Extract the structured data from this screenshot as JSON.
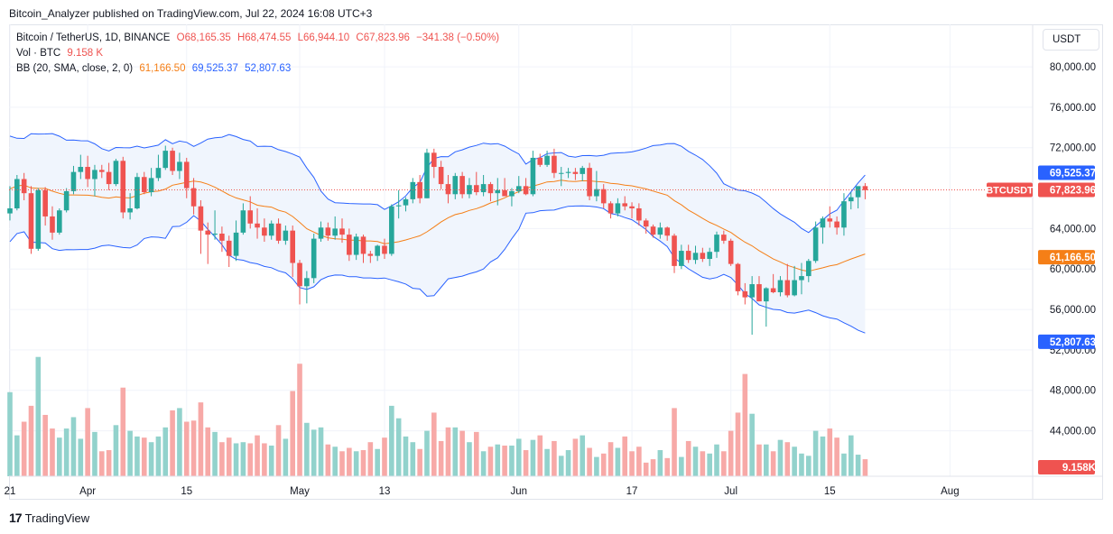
{
  "header": {
    "published_line": "Bitcoin_Analyzer published on TradingView.com, Jul 22, 2024 16:08 UTC+3"
  },
  "legend": {
    "symbol": "Bitcoin / TetherUS, 1D, BINANCE",
    "open": "O68,165.35",
    "high": "H68,474.55",
    "low": "L66,944.10",
    "close": "C67,823.96",
    "change": "−341.38 (−0.50%)",
    "vol_label": "Vol · BTC",
    "vol_value": "9.158 K",
    "bb_label": "BB (20, SMA, close, 2, 0)",
    "bb_basis": "61,166.50",
    "bb_upper": "69,525.37",
    "bb_lower": "52,807.63"
  },
  "currency_button": "USDT",
  "footer": {
    "logo": "17",
    "brand": "TradingView"
  },
  "colors": {
    "up": "#26a69a",
    "down": "#ef5350",
    "up_volume": "#92d2cc",
    "down_volume": "#f7a9a7",
    "bb_basis": "#f57f17",
    "bb_band": "#2962ff",
    "bb_fill": "#f0f5fd",
    "price_line": "#ef5350"
  },
  "chart_data": {
    "type": "candlestick",
    "symbol_tag": "BTCUSDT",
    "x_ticks": [
      {
        "label": "21",
        "day": 0
      },
      {
        "label": "Apr",
        "day": 11
      },
      {
        "label": "15",
        "day": 25
      },
      {
        "label": "May",
        "day": 41
      },
      {
        "label": "13",
        "day": 53
      },
      {
        "label": "Jun",
        "day": 72
      },
      {
        "label": "17",
        "day": 88
      },
      {
        "label": "Jul",
        "day": 102
      },
      {
        "label": "15",
        "day": 116
      },
      {
        "label": "Aug",
        "day": 133
      }
    ],
    "y_ticks": [
      "80,000.00",
      "76,000.00",
      "72,000.00",
      "64,000.00",
      "60,000.00",
      "56,000.00",
      "52,000.00",
      "48,000.00",
      "44,000.00"
    ],
    "y_tick_values": [
      80000,
      76000,
      72000,
      64000,
      60000,
      56000,
      52000,
      48000,
      44000
    ],
    "price_ylim": [
      39500,
      84200
    ],
    "axis_labels": [
      {
        "text": "69,525.37",
        "value": 69525.37,
        "kind": "upper"
      },
      {
        "text": "67,823.96",
        "value": 67823.96,
        "kind": "last",
        "tag": "BTCUSDT"
      },
      {
        "text": "61,166.50",
        "value": 61166.5,
        "kind": "basis"
      },
      {
        "text": "52,807.63",
        "value": 52807.63,
        "kind": "lower"
      },
      {
        "text": "9.158K",
        "kind": "volume"
      }
    ],
    "last_price": 67823.96,
    "volume_max": 10,
    "candles_ohlc": [
      [
        65500,
        68200,
        64800,
        66000
      ],
      [
        66000,
        69300,
        65800,
        68900
      ],
      [
        68900,
        69500,
        66800,
        67500
      ],
      [
        67500,
        68200,
        61500,
        62000
      ],
      [
        62000,
        68000,
        61800,
        67800
      ],
      [
        67800,
        68100,
        64300,
        65200
      ],
      [
        65200,
        66200,
        62900,
        63600
      ],
      [
        63600,
        66000,
        63400,
        65800
      ],
      [
        65800,
        68000,
        65600,
        67700
      ],
      [
        67700,
        70200,
        67400,
        69600
      ],
      [
        69600,
        71300,
        68900,
        70100
      ],
      [
        70100,
        71200,
        68100,
        68900
      ],
      [
        68900,
        70300,
        67200,
        69800
      ],
      [
        69800,
        70300,
        69000,
        69600
      ],
      [
        69600,
        70500,
        67800,
        68400
      ],
      [
        68400,
        70900,
        68200,
        70700
      ],
      [
        70700,
        71100,
        65000,
        65600
      ],
      [
        65600,
        67500,
        64900,
        66000
      ],
      [
        66000,
        69500,
        65900,
        69100
      ],
      [
        69100,
        69600,
        67400,
        67600
      ],
      [
        67600,
        70000,
        67200,
        69000
      ],
      [
        69000,
        71300,
        68700,
        70000
      ],
      [
        70000,
        72200,
        69800,
        71700
      ],
      [
        71700,
        72000,
        69300,
        69700
      ],
      [
        69700,
        71500,
        68900,
        70600
      ],
      [
        70600,
        71000,
        67000,
        68000
      ],
      [
        68000,
        69000,
        65400,
        66200
      ],
      [
        66200,
        66800,
        61500,
        63800
      ],
      [
        63800,
        64600,
        60500,
        63400
      ],
      [
        63400,
        65800,
        62900,
        63500
      ],
      [
        63500,
        64200,
        61700,
        62800
      ],
      [
        62800,
        63300,
        60200,
        61300
      ],
      [
        61300,
        64800,
        60800,
        63600
      ],
      [
        63600,
        66500,
        63400,
        65800
      ],
      [
        65800,
        67200,
        64000,
        64500
      ],
      [
        64500,
        66000,
        63000,
        64100
      ],
      [
        64100,
        65000,
        62700,
        63300
      ],
      [
        63300,
        64800,
        62900,
        64500
      ],
      [
        64500,
        65000,
        62500,
        62800
      ],
      [
        62800,
        64300,
        62400,
        63800
      ],
      [
        63800,
        64300,
        59200,
        60600
      ],
      [
        60600,
        60900,
        56500,
        58300
      ],
      [
        58300,
        59800,
        56600,
        59100
      ],
      [
        59100,
        63500,
        58600,
        63000
      ],
      [
        63000,
        64700,
        62700,
        64100
      ],
      [
        64100,
        64600,
        62800,
        63300
      ],
      [
        63300,
        65200,
        62900,
        64000
      ],
      [
        64000,
        65000,
        62600,
        63400
      ],
      [
        63400,
        64000,
        60800,
        61400
      ],
      [
        61400,
        63500,
        60900,
        63200
      ],
      [
        63200,
        63400,
        60600,
        61500
      ],
      [
        61500,
        61800,
        60600,
        61300
      ],
      [
        61300,
        62400,
        60800,
        62300
      ],
      [
        62300,
        63000,
        61000,
        61500
      ],
      [
        61500,
        66400,
        61300,
        66200
      ],
      [
        66200,
        67800,
        65000,
        66300
      ],
      [
        66300,
        67100,
        65700,
        66900
      ],
      [
        66900,
        69000,
        66500,
        68600
      ],
      [
        68600,
        69300,
        66500,
        67000
      ],
      [
        67000,
        71900,
        67000,
        71500
      ],
      [
        71500,
        71900,
        69000,
        70100
      ],
      [
        70100,
        70700,
        67900,
        68400
      ],
      [
        68400,
        69300,
        66500,
        67400
      ],
      [
        67400,
        69500,
        66900,
        69200
      ],
      [
        69200,
        69600,
        67000,
        67400
      ],
      [
        67400,
        69000,
        67000,
        68300
      ],
      [
        68300,
        69600,
        67300,
        67600
      ],
      [
        67600,
        69300,
        67200,
        68400
      ],
      [
        68400,
        68600,
        66700,
        67500
      ],
      [
        67500,
        69000,
        66300,
        67800
      ],
      [
        67800,
        69000,
        67200,
        67200
      ],
      [
        67200,
        68000,
        66200,
        67700
      ],
      [
        67700,
        69200,
        67500,
        68200
      ],
      [
        68200,
        69000,
        67300,
        67400
      ],
      [
        67400,
        71700,
        67200,
        71000
      ],
      [
        71000,
        71400,
        70100,
        70300
      ],
      [
        70300,
        71700,
        70100,
        71200
      ],
      [
        71200,
        71900,
        69000,
        69500
      ],
      [
        69500,
        70100,
        68200,
        69500
      ],
      [
        69500,
        70000,
        69000,
        69600
      ],
      [
        69600,
        70000,
        68800,
        69400
      ],
      [
        69400,
        70200,
        68700,
        70000
      ],
      [
        70000,
        70500,
        66800,
        67200
      ],
      [
        67200,
        69700,
        66700,
        67900
      ],
      [
        67900,
        68400,
        66000,
        66500
      ],
      [
        66500,
        66700,
        65000,
        65500
      ],
      [
        65500,
        67000,
        65200,
        66500
      ],
      [
        66500,
        67200,
        65800,
        66200
      ],
      [
        66200,
        66600,
        65000,
        66000
      ],
      [
        66000,
        66500,
        64300,
        64800
      ],
      [
        64800,
        65000,
        63500,
        64200
      ],
      [
        64200,
        64400,
        63100,
        63400
      ],
      [
        63400,
        64600,
        63000,
        64100
      ],
      [
        64100,
        64200,
        62800,
        63300
      ],
      [
        63300,
        63500,
        59600,
        60300
      ],
      [
        60300,
        62400,
        60000,
        61800
      ],
      [
        61800,
        62400,
        60600,
        60900
      ],
      [
        60900,
        62300,
        60500,
        61600
      ],
      [
        61600,
        62100,
        60700,
        61000
      ],
      [
        61000,
        62100,
        60300,
        61700
      ],
      [
        61700,
        63700,
        61100,
        63400
      ],
      [
        63400,
        63800,
        62500,
        62800
      ],
      [
        62800,
        63000,
        60300,
        60500
      ],
      [
        60500,
        60600,
        57400,
        57800
      ],
      [
        57800,
        58600,
        56500,
        57200
      ],
      [
        57200,
        59300,
        53500,
        58500
      ],
      [
        58500,
        59300,
        56800,
        56800
      ],
      [
        56800,
        58200,
        54300,
        58100
      ],
      [
        58100,
        59500,
        57600,
        57700
      ],
      [
        57700,
        59300,
        57300,
        58900
      ],
      [
        58900,
        60500,
        57200,
        57400
      ],
      [
        57400,
        60300,
        57300,
        58900
      ],
      [
        58900,
        60600,
        57500,
        59300
      ],
      [
        59300,
        61000,
        58700,
        60800
      ],
      [
        60800,
        64700,
        60600,
        64100
      ],
      [
        64100,
        65200,
        62500,
        65000
      ],
      [
        65000,
        66200,
        64100,
        64700
      ],
      [
        64700,
        65200,
        63400,
        64100
      ],
      [
        64100,
        67500,
        63300,
        66700
      ],
      [
        66700,
        67600,
        65900,
        67100
      ],
      [
        67100,
        68000,
        66000,
        68200
      ],
      [
        68200,
        68500,
        66900,
        67800
      ]
    ],
    "volumes": [
      7.4,
      3.6,
      4.8,
      6.2,
      10.5,
      5.4,
      4.2,
      3.4,
      4.2,
      5.2,
      3.3,
      6.0,
      3.9,
      2.2,
      2.3,
      4.5,
      7.8,
      4.0,
      3.5,
      3.4,
      3.0,
      3.5,
      4.3,
      5.8,
      6.0,
      4.8,
      4.9,
      6.5,
      4.3,
      3.9,
      3.0,
      3.4,
      2.9,
      3.0,
      2.9,
      3.6,
      2.9,
      2.7,
      4.5,
      3.3,
      7.5,
      9.9,
      4.7,
      4.1,
      4.3,
      2.8,
      2.6,
      2.2,
      2.5,
      2.2,
      2.3,
      3.0,
      2.4,
      3.4,
      6.2,
      5.1,
      3.5,
      3.0,
      2.4,
      4.0,
      5.6,
      3.1,
      4.3,
      4.3,
      4.0,
      3.0,
      3.9,
      2.2,
      2.6,
      2.8,
      2.7,
      2.7,
      3.3,
      2.3,
      3.2,
      3.6,
      2.4,
      3.1,
      1.8,
      2.3,
      3.3,
      3.6,
      2.5,
      1.7,
      2.0,
      3.0,
      2.5,
      3.5,
      2.2,
      2.6,
      1.2,
      1.5,
      2.3,
      1.6,
      6.0,
      1.7,
      3.1,
      2.6,
      2.2,
      2.0,
      2.8,
      2.2,
      4.0,
      5.6,
      9.0,
      5.5,
      2.8,
      2.8,
      2.2,
      3.2,
      3.0,
      2.6,
      2.0,
      1.8,
      4.0,
      3.5,
      4.2,
      3.4,
      2.0,
      3.6,
      1.9,
      1.5
    ]
  }
}
